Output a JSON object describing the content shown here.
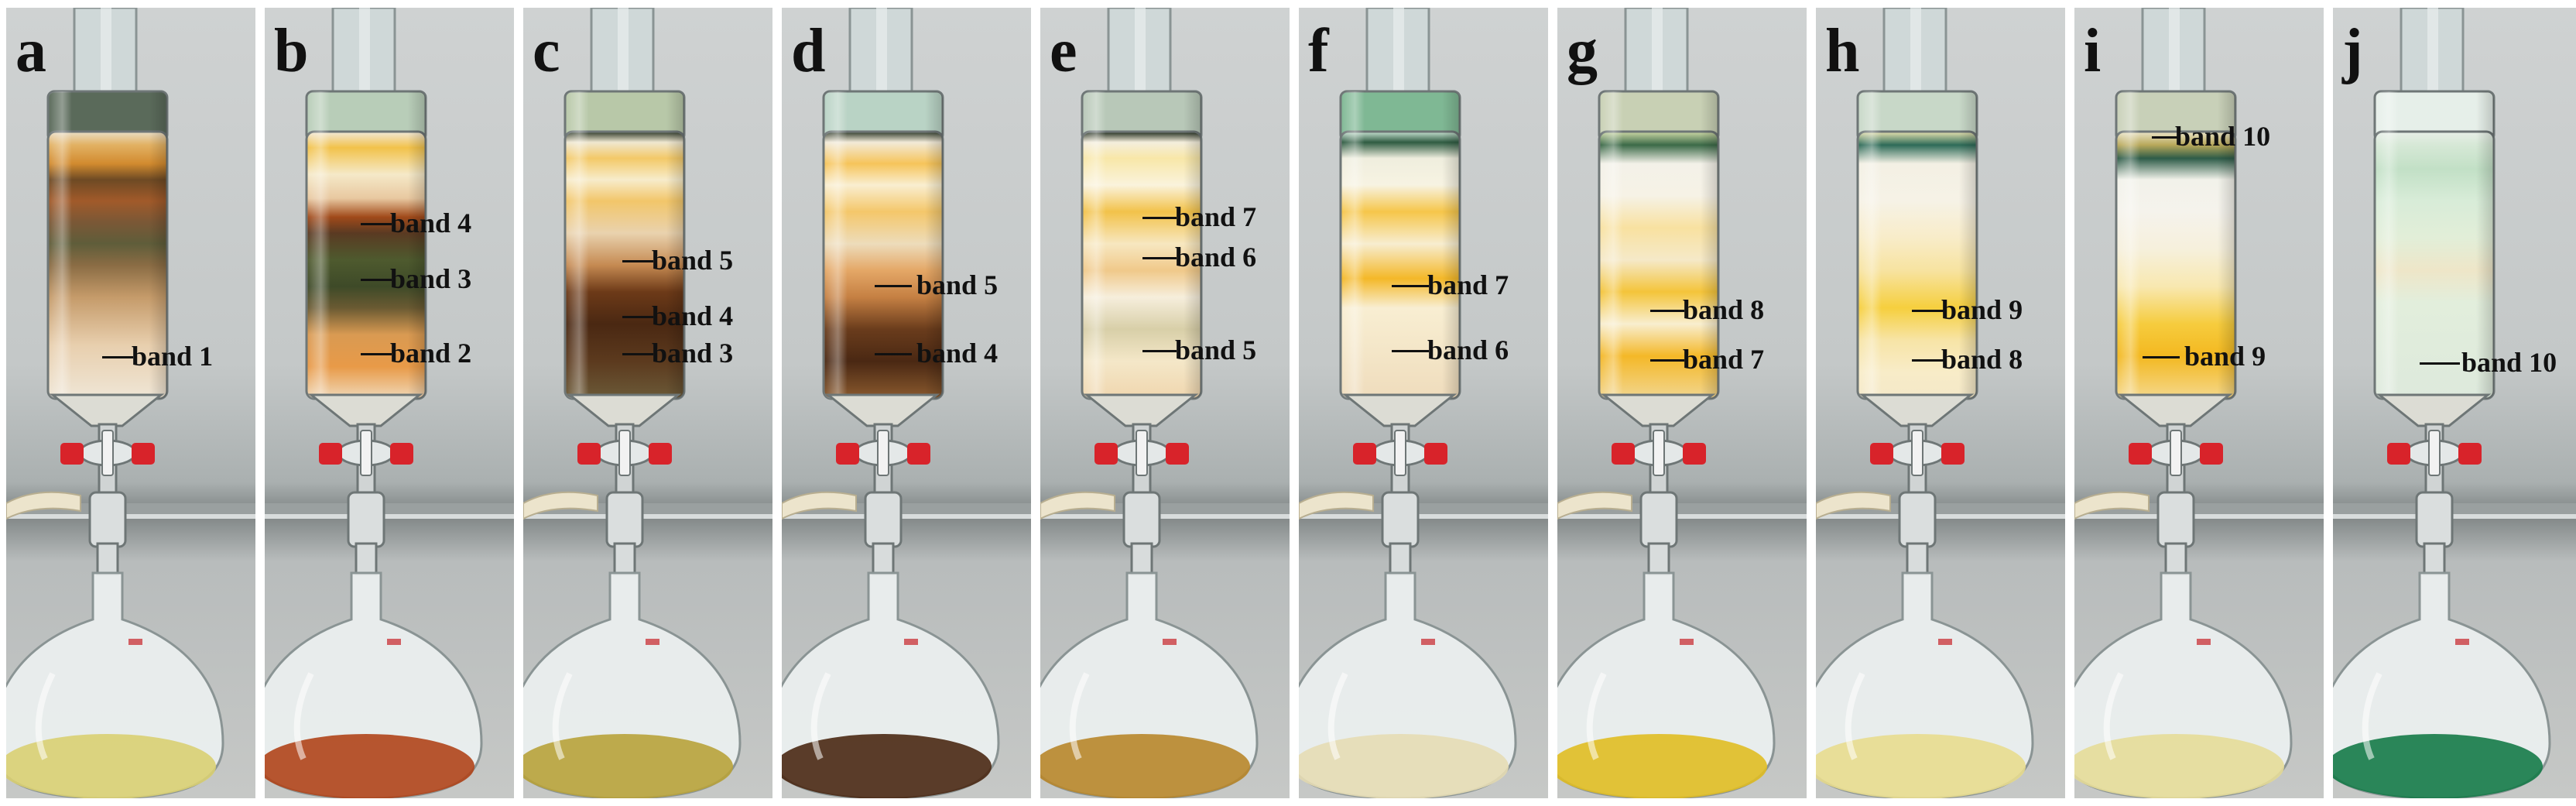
{
  "panels": [
    {
      "letter": "a",
      "bands": [
        "band 1"
      ]
    },
    {
      "letter": "b",
      "bands": [
        "band 4",
        "band 3",
        "band 2"
      ]
    },
    {
      "letter": "c",
      "bands": [
        "band 5",
        "band 4",
        "band 3"
      ]
    },
    {
      "letter": "d",
      "bands": [
        "band 5",
        "band 4"
      ]
    },
    {
      "letter": "e",
      "bands": [
        "band 7",
        "band 6",
        "band 5"
      ]
    },
    {
      "letter": "f",
      "bands": [
        "band 7",
        "band 6"
      ]
    },
    {
      "letter": "g",
      "bands": [
        "band 8",
        "band 7"
      ]
    },
    {
      "letter": "h",
      "bands": [
        "band 9",
        "band 8"
      ]
    },
    {
      "letter": "i",
      "bands": [
        "band 10",
        "band 9"
      ]
    },
    {
      "letter": "j",
      "bands": [
        "band 10"
      ]
    }
  ]
}
